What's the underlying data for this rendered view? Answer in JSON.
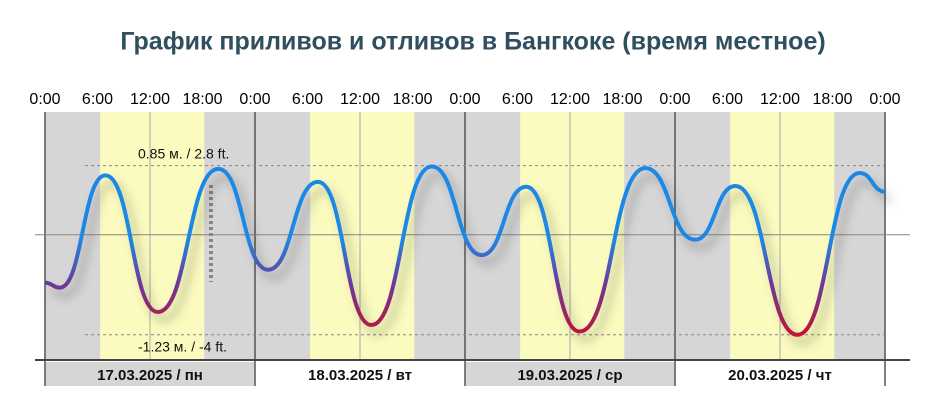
{
  "chart_data": {
    "type": "line",
    "title": "График приливов и отливов в Бангкоке (время местное)",
    "x": [
      0,
      1.7,
      6.9,
      12.9,
      19.8,
      25.5,
      31.2,
      37.3,
      44.2,
      49.9,
      55,
      61.1,
      68.6,
      74.3,
      78.9,
      86,
      93.1,
      96
    ],
    "values": [
      -0.59,
      -0.65,
      0.73,
      -0.95,
      0.81,
      -0.43,
      0.65,
      -1.11,
      0.84,
      -0.25,
      0.59,
      -1.19,
      0.82,
      -0.06,
      0.6,
      -1.23,
      0.76,
      0.53
    ],
    "color": "#1e88e5",
    "low_color": "#c8102e",
    "xlim": [
      0,
      96
    ],
    "xticks": [
      {
        "value": 0,
        "label": "0:00"
      },
      {
        "value": 6,
        "label": "6:00"
      },
      {
        "value": 12,
        "label": "12:00"
      },
      {
        "value": 18,
        "label": "18:00"
      },
      {
        "value": 24,
        "label": "0:00"
      },
      {
        "value": 30,
        "label": "6:00"
      },
      {
        "value": 36,
        "label": "12:00"
      },
      {
        "value": 42,
        "label": "18:00"
      },
      {
        "value": 48,
        "label": "0:00"
      },
      {
        "value": 54,
        "label": "6:00"
      },
      {
        "value": 60,
        "label": "12:00"
      },
      {
        "value": 66,
        "label": "18:00"
      },
      {
        "value": 72,
        "label": "0:00"
      },
      {
        "value": 78,
        "label": "6:00"
      },
      {
        "value": 84,
        "label": "12:00"
      },
      {
        "value": 90,
        "label": "18:00"
      },
      {
        "value": 96,
        "label": "0:00"
      }
    ],
    "ylim": [
      -1.54,
      1.51
    ],
    "daylight_hours": [
      6.3,
      18.2
    ],
    "day_labels": [
      "17.03.2025 / пн",
      "18.03.2025 / вт",
      "19.03.2025 / ср",
      "20.03.2025 / чт"
    ],
    "annotations": [
      {
        "text": "0.85 м. / 2.8 ft.",
        "value": 0.85
      },
      {
        "text": "-1.23 м. / -4 ft.",
        "value": -1.23
      }
    ]
  }
}
